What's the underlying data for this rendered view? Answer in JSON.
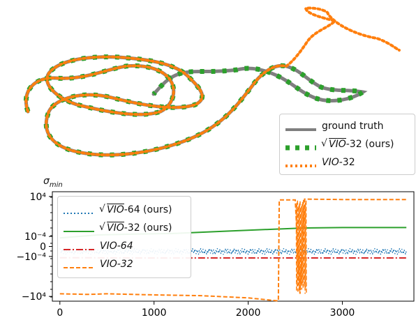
{
  "figure": {
    "panels": [
      {
        "type": "trajectory",
        "legend": [
          {
            "text": "ground truth",
            "color": "#7f7f7f",
            "style": "solid"
          },
          {
            "sqrt_text": "VIO",
            "suffix": "-32 (ours)",
            "color": "#2ca02c",
            "style": "dashed"
          },
          {
            "ital_text": "VIO",
            "suffix": "-32",
            "color": "#ff7f0e",
            "style": "dotted"
          }
        ]
      }
    ]
  },
  "chart_data": {
    "type": "line",
    "ylabel": "σ_min",
    "ylabel_display": "σmin",
    "yscale": "symlog",
    "xlim": [
      -80,
      3760
    ],
    "xticks": [
      0,
      1000,
      2000,
      3000
    ],
    "xtick_labels": [
      "0",
      "1000",
      "2000",
      "3000"
    ],
    "ytick_labels": [
      "10⁴",
      "10⁻⁴",
      "0",
      "−10⁻⁴",
      "−10⁴"
    ],
    "ytick_values": [
      10000,
      0.0001,
      0,
      -0.0001,
      -10000
    ],
    "series": [
      {
        "name": "√VIO-64 (ours)",
        "color": "#1f77b4",
        "style": "dotted",
        "x": [
          0,
          500,
          1000,
          1500,
          2000,
          2500,
          3000,
          3680
        ],
        "y": [
          -1e-05,
          -1e-05,
          -1e-05,
          -1e-05,
          -1e-05,
          -1e-05,
          -1e-05,
          -1e-05
        ]
      },
      {
        "name": "√VIO-32 (ours)",
        "color": "#2ca02c",
        "style": "solid",
        "x": [
          0,
          400,
          800,
          1200,
          1800,
          2300,
          2600,
          3000,
          3680
        ],
        "y": [
          5e-05,
          0.0002,
          0.0003,
          0.0004,
          0.0012,
          0.003,
          0.005,
          0.006,
          0.006
        ]
      },
      {
        "name": "VIO-64",
        "color": "#d62728",
        "style": "dashdot",
        "x": [
          0,
          1000,
          2000,
          3000,
          3680
        ],
        "y": [
          -0.00018,
          -0.0002,
          -0.0002,
          -0.0002,
          -0.0002
        ]
      },
      {
        "name": "VIO-32",
        "color": "#ff7f0e",
        "style": "dashed",
        "x": [
          0,
          300,
          500,
          1000,
          1500,
          2000,
          2320,
          2330,
          2500,
          2550,
          2600,
          3000,
          3680
        ],
        "y": [
          -3000,
          -4000,
          -3000,
          -5000,
          -7000,
          -20000,
          -80000,
          2000,
          2000,
          -3000,
          3000,
          2500,
          2500
        ]
      }
    ]
  }
}
